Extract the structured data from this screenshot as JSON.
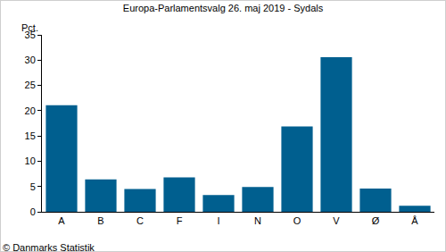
{
  "chart_data": {
    "type": "bar",
    "title": "Europa-Parlamentsvalg 26. maj 2019 - Sydals",
    "ylabel": "Pct.",
    "source": "© Danmarks Statistik",
    "categories": [
      "A",
      "B",
      "C",
      "F",
      "I",
      "N",
      "O",
      "V",
      "Ø",
      "Å"
    ],
    "values": [
      21.1,
      6.4,
      4.5,
      6.8,
      3.3,
      4.9,
      16.9,
      30.6,
      4.6,
      1.2
    ],
    "color": "#005f8f",
    "ylim": [
      0,
      35
    ],
    "yticks": [
      0,
      5,
      10,
      15,
      20,
      25,
      30,
      35
    ],
    "grid": false
  }
}
